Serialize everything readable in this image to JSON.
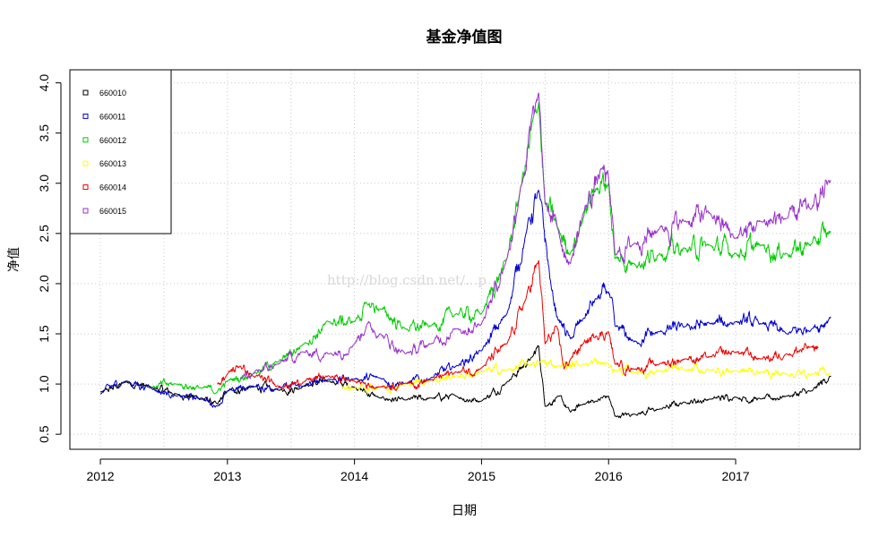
{
  "chart_data": {
    "type": "line",
    "title": "基金净值图",
    "xlabel": "日期",
    "ylabel": "净值",
    "xlim": [
      2011.76,
      2017.98
    ],
    "ylim": [
      0.35,
      4.13
    ],
    "xticks": [
      2012,
      2013,
      2014,
      2015,
      2016,
      2017
    ],
    "xtick_labels": [
      "2012",
      "2013",
      "2014",
      "2015",
      "2016",
      "2017"
    ],
    "yticks": [
      0.5,
      1.0,
      1.5,
      2.0,
      2.5,
      3.0,
      3.5,
      4.0
    ],
    "ytick_labels": [
      "0.5",
      "1.0",
      "1.5",
      "2.0",
      "2.5",
      "3.0",
      "3.5",
      "4.0"
    ],
    "grid": true,
    "legend_position": "top-left",
    "watermark": "http://blog.csdn.net/...p",
    "series": [
      {
        "name": "660010",
        "color": "#000000",
        "x": [
          2012.0,
          2012.2,
          2012.4,
          2012.6,
          2012.8,
          2012.92,
          2013.0,
          2013.2,
          2013.4,
          2013.6,
          2013.8,
          2014.0,
          2014.2,
          2014.4,
          2014.6,
          2014.8,
          2015.0,
          2015.2,
          2015.4,
          2015.45,
          2015.5,
          2015.6,
          2015.7,
          2015.8,
          2015.9,
          2016.0,
          2016.05,
          2016.2,
          2016.4,
          2016.6,
          2016.8,
          2017.0,
          2017.2,
          2017.4,
          2017.6,
          2017.75
        ],
        "y": [
          0.9,
          1.02,
          0.97,
          0.9,
          0.86,
          0.8,
          0.93,
          0.97,
          0.94,
          0.98,
          1.03,
          0.97,
          0.86,
          0.84,
          0.86,
          0.88,
          0.83,
          1.02,
          1.27,
          1.38,
          0.78,
          0.88,
          0.72,
          0.8,
          0.83,
          0.88,
          0.68,
          0.7,
          0.75,
          0.82,
          0.85,
          0.87,
          0.85,
          0.88,
          0.93,
          1.08
        ]
      },
      {
        "name": "660011",
        "color": "#0000cc",
        "x": [
          2012.0,
          2012.2,
          2012.4,
          2012.6,
          2012.8,
          2012.92,
          2013.0,
          2013.2,
          2013.4,
          2013.6,
          2013.8,
          2014.0,
          2014.2,
          2014.4,
          2014.6,
          2014.8,
          2015.0,
          2015.2,
          2015.35,
          2015.45,
          2015.55,
          2015.6,
          2015.7,
          2015.8,
          2015.9,
          2016.0,
          2016.05,
          2016.2,
          2016.4,
          2016.6,
          2016.8,
          2017.0,
          2017.2,
          2017.4,
          2017.6,
          2017.75
        ],
        "y": [
          0.92,
          1.03,
          0.96,
          0.88,
          0.85,
          0.78,
          0.93,
          0.98,
          0.96,
          0.98,
          1.05,
          1.05,
          1.06,
          1.0,
          1.06,
          1.18,
          1.33,
          1.7,
          2.5,
          2.93,
          1.95,
          1.65,
          1.45,
          1.65,
          1.85,
          1.92,
          1.58,
          1.42,
          1.52,
          1.57,
          1.6,
          1.62,
          1.6,
          1.5,
          1.55,
          1.67
        ]
      },
      {
        "name": "660012",
        "color": "#00cc00",
        "x": [
          2012.4,
          2012.6,
          2012.8,
          2012.92,
          2013.0,
          2013.2,
          2013.4,
          2013.6,
          2013.8,
          2014.0,
          2014.1,
          2014.2,
          2014.4,
          2014.6,
          2014.8,
          2015.0,
          2015.2,
          2015.3,
          2015.45,
          2015.5,
          2015.6,
          2015.7,
          2015.8,
          2015.9,
          2016.0,
          2016.05,
          2016.2,
          2016.4,
          2016.6,
          2016.8,
          2017.0,
          2017.2,
          2017.4,
          2017.6,
          2017.75
        ],
        "y": [
          0.97,
          1.0,
          0.96,
          0.92,
          1.03,
          1.1,
          1.22,
          1.4,
          1.62,
          1.62,
          1.8,
          1.75,
          1.55,
          1.58,
          1.7,
          1.7,
          2.25,
          2.9,
          3.8,
          2.8,
          2.55,
          2.3,
          2.65,
          2.95,
          3.0,
          2.25,
          2.2,
          2.3,
          2.35,
          2.38,
          2.3,
          2.38,
          2.3,
          2.4,
          2.52
        ]
      },
      {
        "name": "660013",
        "color": "#ffff00",
        "x": [
          2013.9,
          2014.0,
          2014.2,
          2014.4,
          2014.6,
          2014.8,
          2015.0,
          2015.2,
          2015.4,
          2015.45,
          2015.6,
          2015.8,
          2016.0,
          2016.05,
          2016.2,
          2016.4,
          2016.6,
          2016.8,
          2017.0,
          2017.2,
          2017.4,
          2017.6,
          2017.75
        ],
        "y": [
          0.97,
          0.96,
          0.97,
          1.0,
          1.04,
          1.08,
          1.12,
          1.14,
          1.2,
          1.22,
          1.18,
          1.2,
          1.2,
          1.14,
          1.12,
          1.13,
          1.14,
          1.14,
          1.13,
          1.12,
          1.1,
          1.1,
          1.11
        ]
      },
      {
        "name": "660014",
        "color": "#ee0000",
        "x": [
          2012.92,
          2013.0,
          2013.1,
          2013.2,
          2013.4,
          2013.6,
          2013.8,
          2014.0,
          2014.2,
          2014.4,
          2014.6,
          2014.8,
          2015.0,
          2015.2,
          2015.35,
          2015.45,
          2015.5,
          2015.6,
          2015.65,
          2015.7,
          2015.8,
          2015.9,
          2016.0,
          2016.05,
          2016.2,
          2016.4,
          2016.6,
          2016.8,
          2017.0,
          2017.2,
          2017.4,
          2017.6,
          2017.65
        ],
        "y": [
          1.0,
          1.1,
          1.18,
          1.08,
          0.98,
          1.02,
          1.08,
          1.03,
          0.97,
          1.01,
          1.04,
          1.12,
          1.16,
          1.4,
          1.85,
          2.23,
          1.4,
          1.55,
          1.15,
          1.25,
          1.4,
          1.48,
          1.52,
          1.2,
          1.15,
          1.2,
          1.25,
          1.27,
          1.32,
          1.25,
          1.3,
          1.37,
          1.37
        ]
      },
      {
        "name": "660015",
        "color": "#9933cc",
        "x": [
          2013.1,
          2013.2,
          2013.4,
          2013.6,
          2013.8,
          2014.0,
          2014.1,
          2014.2,
          2014.4,
          2014.6,
          2014.8,
          2015.0,
          2015.2,
          2015.3,
          2015.45,
          2015.5,
          2015.6,
          2015.7,
          2015.8,
          2015.95,
          2016.0,
          2016.05,
          2016.2,
          2016.4,
          2016.6,
          2016.8,
          2017.0,
          2017.2,
          2017.4,
          2017.6,
          2017.75
        ],
        "y": [
          1.05,
          1.1,
          1.2,
          1.32,
          1.3,
          1.4,
          1.6,
          1.5,
          1.3,
          1.4,
          1.55,
          1.6,
          2.25,
          2.9,
          3.9,
          2.8,
          2.55,
          2.2,
          2.7,
          3.15,
          3.05,
          2.3,
          2.4,
          2.55,
          2.62,
          2.7,
          2.45,
          2.62,
          2.65,
          2.75,
          3.03
        ]
      }
    ]
  }
}
